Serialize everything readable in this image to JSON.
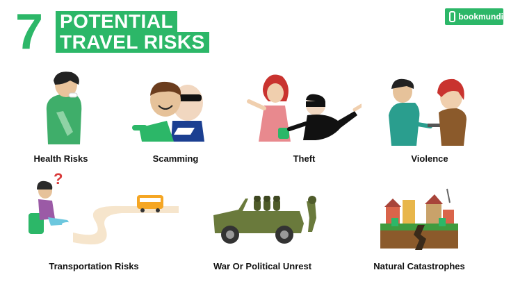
{
  "title": {
    "number": "7",
    "line1": "POTENTIAL",
    "line2": "TRAVEL RISKS"
  },
  "logo": {
    "text": "bookmundi"
  },
  "colors": {
    "brand_green": "#2cb768",
    "caption": "#111111"
  },
  "risks": [
    {
      "label": "Health Risks",
      "icon": "sick-person-icon"
    },
    {
      "label": "Scamming",
      "icon": "scammer-icon"
    },
    {
      "label": "Theft",
      "icon": "thief-icon"
    },
    {
      "label": "Violence",
      "icon": "gun-threat-icon"
    },
    {
      "label": "Transportation Risks",
      "icon": "bus-road-icon"
    },
    {
      "label": "War Or Political Unrest",
      "icon": "military-jeep-icon"
    },
    {
      "label": "Natural Catastrophes",
      "icon": "earthquake-icon"
    }
  ]
}
